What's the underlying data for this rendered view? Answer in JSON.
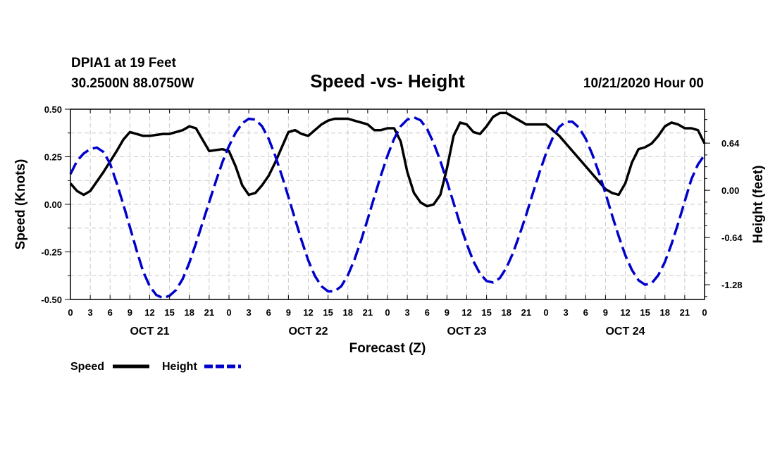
{
  "header": {
    "station": "DPIA1 at 19 Feet",
    "coords": "30.2500N 88.0750W",
    "title": "Speed -vs- Height",
    "datetime": "10/21/2020 Hour 00"
  },
  "chart_data": {
    "type": "line",
    "title": "Speed -vs- Height",
    "xlabel": "Forecast (Z)",
    "ylabel": "Speed (Knots)",
    "y2label": "Height (feet)",
    "xlim": [
      0,
      96
    ],
    "ylim": [
      -0.5,
      0.5
    ],
    "y2lim": [
      -1.48,
      1.1
    ],
    "x_tick_labels": [
      "0",
      "3",
      "6",
      "9",
      "12",
      "15",
      "18",
      "21",
      "0",
      "3",
      "6",
      "9",
      "12",
      "15",
      "18",
      "21",
      "0",
      "3",
      "6",
      "9",
      "12",
      "15",
      "18",
      "21",
      "0",
      "3",
      "6",
      "9",
      "12",
      "15",
      "18",
      "21",
      "0"
    ],
    "y_tick_labels": [
      "0.50",
      "0.25",
      "0.00",
      "-0.25",
      "-0.50"
    ],
    "y_tick_values": [
      0.5,
      0.25,
      0.0,
      -0.25,
      -0.5
    ],
    "y2_tick_labels": [
      "0.64",
      "0.00",
      "-0.64",
      "-1.28"
    ],
    "y2_tick_values": [
      0.64,
      0.0,
      -0.64,
      -1.28
    ],
    "day_labels": [
      "OCT 21",
      "OCT 22",
      "OCT 23",
      "OCT 24"
    ],
    "day_label_hours": [
      12,
      36,
      60,
      84
    ],
    "grid": true,
    "legend": "bottom-left",
    "series": [
      {
        "name": "Speed",
        "axis": "left",
        "color": "#000000",
        "style": "solid",
        "x": [
          0,
          1,
          2,
          3,
          5,
          7,
          8,
          9,
          10,
          11,
          12,
          14,
          15,
          17,
          18,
          19,
          20,
          21,
          23,
          24,
          25,
          26,
          27,
          28,
          29,
          30,
          31,
          32,
          33,
          34,
          35,
          36,
          38,
          39,
          40,
          42,
          43,
          45,
          46,
          47,
          48,
          49,
          50,
          51,
          52,
          53,
          54,
          55,
          56,
          57,
          58,
          59,
          60,
          61,
          62,
          63,
          64,
          65,
          66,
          67,
          68,
          69,
          70,
          72,
          74,
          76,
          78,
          80,
          81,
          82,
          83,
          84,
          85,
          86,
          87,
          88,
          89,
          90,
          91,
          92,
          93,
          94,
          95,
          96
        ],
        "values": [
          0.11,
          0.07,
          0.05,
          0.07,
          0.17,
          0.28,
          0.34,
          0.38,
          0.37,
          0.36,
          0.36,
          0.37,
          0.37,
          0.39,
          0.41,
          0.4,
          0.34,
          0.28,
          0.29,
          0.28,
          0.2,
          0.1,
          0.05,
          0.06,
          0.1,
          0.15,
          0.22,
          0.3,
          0.38,
          0.39,
          0.37,
          0.36,
          0.42,
          0.44,
          0.45,
          0.45,
          0.44,
          0.42,
          0.39,
          0.39,
          0.4,
          0.4,
          0.33,
          0.17,
          0.06,
          0.01,
          -0.01,
          0.0,
          0.05,
          0.19,
          0.36,
          0.43,
          0.42,
          0.38,
          0.37,
          0.41,
          0.46,
          0.48,
          0.48,
          0.46,
          0.44,
          0.42,
          0.42,
          0.42,
          0.36,
          0.28,
          0.2,
          0.12,
          0.08,
          0.06,
          0.05,
          0.11,
          0.22,
          0.29,
          0.3,
          0.32,
          0.36,
          0.41,
          0.43,
          0.42,
          0.4,
          0.4,
          0.39,
          0.32
        ]
      },
      {
        "name": "Height",
        "axis": "right",
        "color": "#0000cc",
        "style": "dashed",
        "x": [
          0,
          1,
          2,
          3,
          4,
          5,
          6,
          7,
          8,
          9,
          10,
          11,
          12,
          13,
          14,
          15,
          16,
          17,
          18,
          19,
          20,
          21,
          22,
          23,
          24,
          25,
          26,
          27,
          28,
          29,
          30,
          31,
          32,
          33,
          34,
          35,
          36,
          37,
          38,
          39,
          40,
          41,
          42,
          43,
          44,
          45,
          46,
          47,
          48,
          49,
          50,
          51,
          52,
          53,
          54,
          55,
          56,
          57,
          58,
          59,
          60,
          61,
          62,
          63,
          64,
          65,
          66,
          67,
          68,
          69,
          70,
          71,
          72,
          73,
          74,
          75,
          76,
          77,
          78,
          79,
          80,
          81,
          82,
          83,
          84,
          85,
          86,
          87,
          88,
          89,
          90,
          91,
          92,
          93,
          94,
          95,
          96
        ],
        "values": [
          0.22,
          0.4,
          0.5,
          0.56,
          0.58,
          0.52,
          0.36,
          0.1,
          -0.19,
          -0.5,
          -0.81,
          -1.1,
          -1.3,
          -1.42,
          -1.46,
          -1.43,
          -1.35,
          -1.2,
          -0.98,
          -0.72,
          -0.44,
          -0.16,
          0.12,
          0.38,
          0.6,
          0.78,
          0.91,
          0.97,
          0.96,
          0.87,
          0.7,
          0.47,
          0.2,
          -0.09,
          -0.39,
          -0.68,
          -0.95,
          -1.16,
          -1.3,
          -1.37,
          -1.37,
          -1.3,
          -1.15,
          -0.94,
          -0.68,
          -0.39,
          -0.09,
          0.2,
          0.47,
          0.7,
          0.87,
          0.96,
          0.99,
          0.95,
          0.83,
          0.64,
          0.4,
          0.12,
          -0.17,
          -0.46,
          -0.73,
          -0.96,
          -1.13,
          -1.23,
          -1.25,
          -1.19,
          -1.05,
          -0.85,
          -0.6,
          -0.33,
          -0.04,
          0.24,
          0.5,
          0.71,
          0.86,
          0.93,
          0.93,
          0.85,
          0.7,
          0.49,
          0.24,
          -0.04,
          -0.34,
          -0.62,
          -0.88,
          -1.08,
          -1.22,
          -1.28,
          -1.26,
          -1.15,
          -0.97,
          -0.73,
          -0.45,
          -0.15,
          0.15,
          0.35,
          0.48
        ]
      }
    ]
  },
  "legend": {
    "speed_label": "Speed",
    "height_label": "Height"
  }
}
